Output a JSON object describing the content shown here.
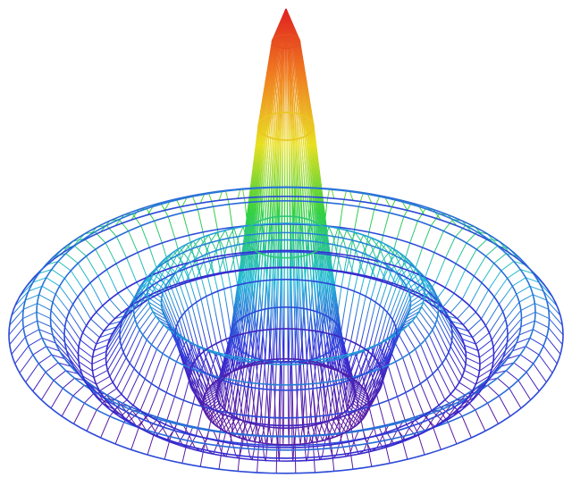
{
  "chart_data": {
    "type": "surface",
    "radius": [
      0,
      0.25,
      0.5,
      0.75,
      1,
      1.25,
      1.5,
      1.75,
      2,
      2.25,
      2.5,
      2.75,
      3,
      3.25,
      3.5,
      3.75,
      4,
      4.25,
      4.5,
      4.75,
      5
    ],
    "values": [
      1,
      0.9,
      0.64,
      0.3,
      0,
      -0.18,
      -0.21,
      -0.13,
      0,
      0.1,
      0.13,
      0.08,
      0,
      -0.07,
      -0.09,
      -0.06,
      0,
      0.05,
      0.07,
      0.05,
      0
    ],
    "rlim": [
      0,
      5
    ],
    "zlim": [
      -0.25,
      1
    ],
    "colormap": [
      "#5a1aa0",
      "#2f2fd8",
      "#22b8d8",
      "#30d040",
      "#e8e020",
      "#f08020",
      "#e02020"
    ]
  }
}
